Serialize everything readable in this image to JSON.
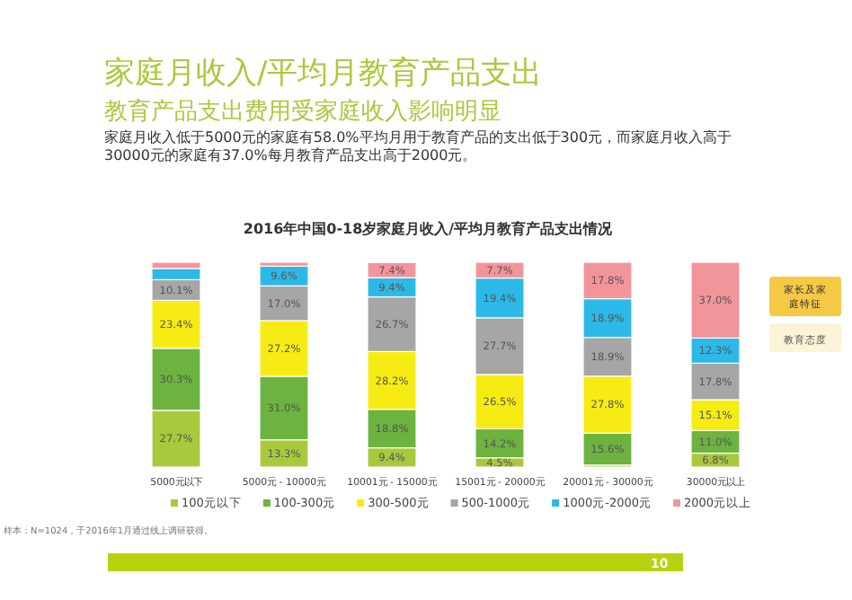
{
  "chart_data": {
    "type": "bar",
    "stacked": true,
    "title": "2016年中国0-18岁家庭月收入/平均月教育产品支出情况",
    "categories": [
      "5000元以下",
      "5000元 - 10000元",
      "10001元 - 15000元",
      "15001元 - 20000元",
      "20001元 - 30000元",
      "30000元以上"
    ],
    "ylim": [
      0,
      100
    ],
    "legend": "bottom",
    "series": [
      {
        "name": "100元以下",
        "color": "#a9c93c",
        "values": [
          27.7,
          13.3,
          9.4,
          4.5,
          1.0,
          6.8
        ],
        "value_labels": [
          "27.7%",
          "13.3%",
          "9.4%",
          "4.5%",
          null,
          "6.8%"
        ]
      },
      {
        "name": "100-300元",
        "color": "#6cb33f",
        "values": [
          30.3,
          31.0,
          18.8,
          14.2,
          15.6,
          11.0
        ],
        "value_labels": [
          "30.3%",
          "31.0%",
          "18.8%",
          "14.2%",
          "15.6%",
          "11.0%"
        ]
      },
      {
        "name": "300-500元",
        "color": "#f6ec13",
        "values": [
          23.4,
          27.2,
          28.2,
          26.5,
          27.8,
          15.1
        ],
        "value_labels": [
          "23.4%",
          "27.2%",
          "28.2%",
          "26.5%",
          "27.8%",
          "15.1%"
        ]
      },
      {
        "name": "500-1000元",
        "color": "#a6a6a6",
        "values": [
          10.1,
          17.0,
          26.7,
          27.7,
          18.9,
          17.8
        ],
        "value_labels": [
          "10.1%",
          "17.0%",
          "26.7%",
          "27.7%",
          "18.9%",
          "17.8%"
        ]
      },
      {
        "name": "1000元-2000元",
        "color": "#2cb9e8",
        "values": [
          5.5,
          9.6,
          9.4,
          19.4,
          18.9,
          12.3
        ],
        "value_labels": [
          null,
          "9.6%",
          "9.4%",
          "19.4%",
          "18.9%",
          "12.3%"
        ]
      },
      {
        "name": "2000元以上",
        "color": "#f2959b",
        "values": [
          3.0,
          1.9,
          7.4,
          7.7,
          17.8,
          37.0
        ],
        "value_labels": [
          null,
          null,
          "7.4%",
          "7.7%",
          "17.8%",
          "37.0%"
        ]
      }
    ],
    "annotations": [
      "家庭月收入/平均月教育产品支出",
      "教育产品支出费用受家庭收入影响明显",
      "家庭月收入低于5000元的家庭有58.0%平均月用于教育产品的支出低于300元，而家庭月收入高于30000元的家庭有37.0%每月教育产品支出高于2000元。",
      "家长及家庭特征",
      "教育态度",
      "样本：N=1024，于2016年1月通过线上调研获得。",
      "10"
    ]
  }
}
